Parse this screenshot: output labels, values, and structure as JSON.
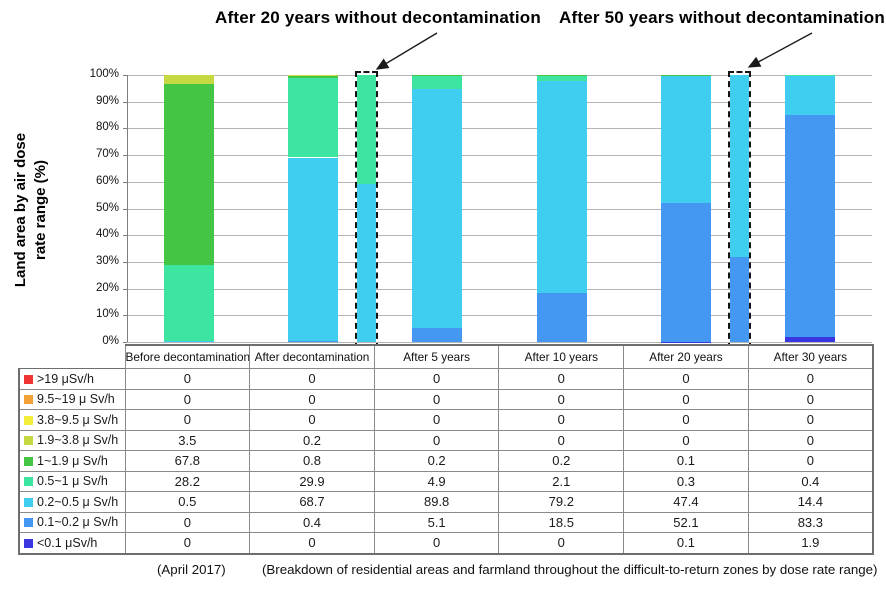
{
  "annotations": {
    "after20_label": "After 20 years without decontamination",
    "after50_label": "After 50 years without decontamination"
  },
  "chart_data": {
    "type": "bar",
    "subtype": "100%-stacked-column",
    "title": "",
    "xlabel": "",
    "ylabel": "Land area by air dose rate range (%)",
    "ylabel_lines": [
      "Land area by air dose",
      "rate range (%)"
    ],
    "ylim": [
      0,
      100
    ],
    "ytick_step": 10,
    "yticks": [
      "0%",
      "10%",
      "20%",
      "30%",
      "40%",
      "50%",
      "60%",
      "70%",
      "80%",
      "90%",
      "100%"
    ],
    "grid": true,
    "legend_position": "table-row-labels",
    "categories": [
      "Before decontamination",
      "After decontamination",
      "After 5 years",
      "After 10 years",
      "After 20 years",
      "After 30 years"
    ],
    "series": [
      {
        "name": "<0.1 μSv/h",
        "color": "#3a36e0",
        "values": [
          0,
          0,
          0,
          0,
          0.1,
          1.9
        ]
      },
      {
        "name": "0.1~0.2 μ Sv/h",
        "color": "#4598f2",
        "values": [
          0,
          0.4,
          5.1,
          18.5,
          52.1,
          83.3
        ]
      },
      {
        "name": "0.2~0.5 μ Sv/h",
        "color": "#3fcdf0",
        "values": [
          0.5,
          68.7,
          89.8,
          79.2,
          47.4,
          14.4
        ]
      },
      {
        "name": "0.5~1 μ Sv/h",
        "color": "#3ee5a1",
        "values": [
          28.2,
          29.9,
          4.9,
          2.1,
          0.3,
          0.4
        ]
      },
      {
        "name": "1~1.9 μ Sv/h",
        "color": "#44c544",
        "values": [
          67.8,
          0.8,
          0.2,
          0.2,
          0.1,
          0
        ]
      },
      {
        "name": "1.9~3.8 μ Sv/h",
        "color": "#c6d943",
        "values": [
          3.5,
          0.2,
          0,
          0,
          0,
          0
        ]
      },
      {
        "name": "3.8~9.5 μ Sv/h",
        "color": "#f2ee3a",
        "values": [
          0,
          0,
          0,
          0,
          0,
          0
        ]
      },
      {
        "name": "9.5~19 μ Sv/h",
        "color": "#f2a136",
        "values": [
          0,
          0,
          0,
          0,
          0,
          0
        ]
      },
      {
        "name": ">19 μSv/h",
        "color": "#ee3434",
        "values": [
          0,
          0,
          0,
          0,
          0,
          0
        ]
      }
    ],
    "reference_bars": [
      {
        "label": "After 20 years without decontamination",
        "after_category_index": 1,
        "style": "dashed-outline",
        "segments": [
          {
            "range": "0.2~0.5 μ Sv/h",
            "color": "#3fcdf0",
            "value": 59
          },
          {
            "range": "0.5~1 μ Sv/h",
            "color": "#3ee5a1",
            "value": 41
          }
        ]
      },
      {
        "label": "After 50 years without decontamination",
        "after_category_index": 4,
        "style": "dashed-outline",
        "segments": [
          {
            "range": "0.1~0.2 μ Sv/h",
            "color": "#4598f2",
            "value": 32
          },
          {
            "range": "0.2~0.5 μ Sv/h",
            "color": "#3fcdf0",
            "value": 68
          }
        ]
      }
    ]
  },
  "table": {
    "columns": [
      "Before decontamination",
      "After decontamination",
      "After 5 years",
      "After 10 years",
      "After 20 years",
      "After 30 years"
    ],
    "rows": [
      {
        "label": ">19 μSv/h",
        "color": "#ee3434",
        "values": [
          "0",
          "0",
          "0",
          "0",
          "0",
          "0"
        ]
      },
      {
        "label": "9.5~19 μ Sv/h",
        "color": "#f2a136",
        "values": [
          "0",
          "0",
          "0",
          "0",
          "0",
          "0"
        ]
      },
      {
        "label": "3.8~9.5 μ Sv/h",
        "color": "#f2ee3a",
        "values": [
          "0",
          "0",
          "0",
          "0",
          "0",
          "0"
        ]
      },
      {
        "label": "1.9~3.8 μ Sv/h",
        "color": "#c6d943",
        "values": [
          "3.5",
          "0.2",
          "0",
          "0",
          "0",
          "0"
        ]
      },
      {
        "label": "1~1.9 μ Sv/h",
        "color": "#44c544",
        "values": [
          "67.8",
          "0.8",
          "0.2",
          "0.2",
          "0.1",
          "0"
        ]
      },
      {
        "label": "0.5~1 μ Sv/h",
        "color": "#3ee5a1",
        "values": [
          "28.2",
          "29.9",
          "4.9",
          "2.1",
          "0.3",
          "0.4"
        ]
      },
      {
        "label": "0.2~0.5 μ Sv/h",
        "color": "#3fcdf0",
        "values": [
          "0.5",
          "68.7",
          "89.8",
          "79.2",
          "47.4",
          "14.4"
        ]
      },
      {
        "label": "0.1~0.2 μ Sv/h",
        "color": "#4598f2",
        "values": [
          "0",
          "0.4",
          "5.1",
          "18.5",
          "52.1",
          "83.3"
        ]
      },
      {
        "label": "<0.1 μSv/h",
        "color": "#3a36e0",
        "values": [
          "0",
          "0",
          "0",
          "0",
          "0.1",
          "1.9"
        ]
      }
    ]
  },
  "footer": {
    "date": "(April 2017)",
    "note": "(Breakdown of residential areas and farmland throughout the difficult-to-return zones by dose rate range)"
  }
}
